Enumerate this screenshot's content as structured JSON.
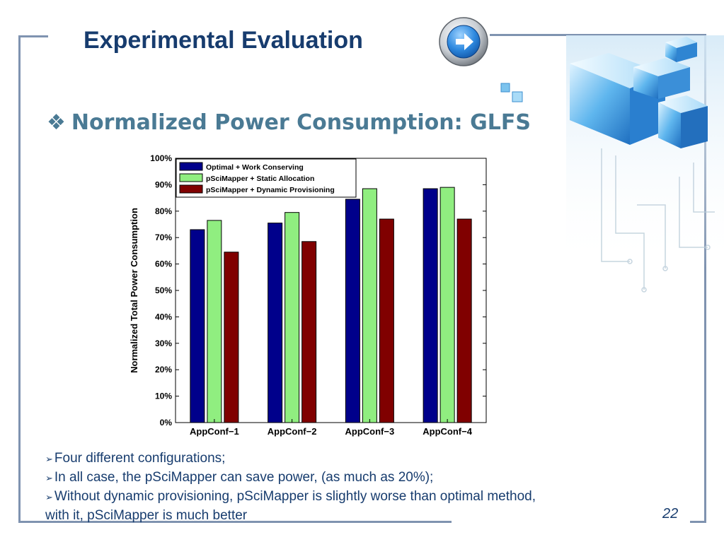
{
  "slide": {
    "title": "Experimental Evaluation",
    "subtitle_bullet": "❖",
    "subtitle": "Normalized Power Consumption: GLFS",
    "page_number": "22",
    "bullet_marker": "➢",
    "bullets": [
      "Four different configurations;",
      "In all case, the pSciMapper can save power, (as much as 20%);",
      "Without dynamic provisioning, pSciMapper is slightly worse than optimal method,"
    ],
    "bullet_continuation": "with it, pSciMapper is much better"
  },
  "colors": {
    "title": "#173c6e",
    "subtitle": "#4a7a94",
    "frame": "#7f93b0",
    "series_blue": "#00008b",
    "series_green": "#90ee80",
    "series_red": "#800000"
  },
  "chart_data": {
    "type": "bar",
    "categories": [
      "AppConf−1",
      "AppConf−2",
      "AppConf−3",
      "AppConf−4"
    ],
    "series": [
      {
        "name": "Optimal + Work Conserving",
        "color": "#00008b",
        "values": [
          73,
          75.5,
          84.5,
          88.5
        ]
      },
      {
        "name": "pSciMapper + Static Allocation",
        "color": "#90ee80",
        "values": [
          76.5,
          79.5,
          88.5,
          89
        ]
      },
      {
        "name": "pSciMapper + Dynamic Provisioning",
        "color": "#800000",
        "values": [
          64.5,
          68.5,
          77,
          77
        ]
      }
    ],
    "ylabel": "Normalized Total Power Consumption",
    "xlabel": "",
    "ylim": [
      0,
      100
    ],
    "yticks": [
      "0%",
      "10%",
      "20%",
      "30%",
      "40%",
      "50%",
      "60%",
      "70%",
      "80%",
      "90%",
      "100%"
    ],
    "legend_position": "top-left",
    "grid": false
  }
}
